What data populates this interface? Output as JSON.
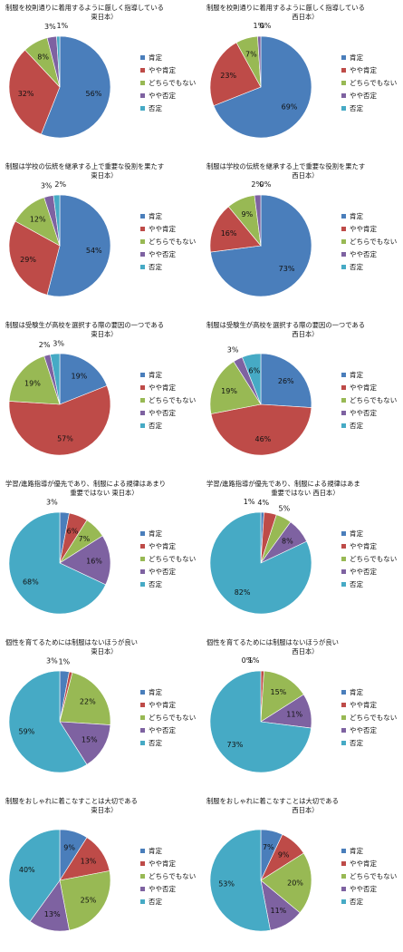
{
  "legend_labels": [
    "肯定",
    "やや肯定",
    "どちらでもない",
    "やや否定",
    "否定"
  ],
  "colors": [
    "#4a7ebb",
    "#be4b48",
    "#98b954",
    "#7e62a1",
    "#46aac5"
  ],
  "chart_data": [
    {
      "type": "pie",
      "title_lines": [
        "制服を校則通りに着用するように厳しく指導している",
        "東日本）"
      ],
      "categories": [
        "肯定",
        "やや肯定",
        "どちらでもない",
        "やや否定",
        "否定"
      ],
      "values": [
        56,
        32,
        8,
        3,
        1
      ],
      "labels": [
        "56%",
        "32%",
        "8%",
        "3%",
        "1%"
      ]
    },
    {
      "type": "pie",
      "title_lines": [
        "制服を校則通りに着用するように厳しく指導している",
        "西日本）"
      ],
      "categories": [
        "肯定",
        "やや肯定",
        "どちらでもない",
        "やや否定",
        "否定"
      ],
      "values": [
        69,
        23,
        7,
        1,
        0
      ],
      "labels": [
        "69%",
        "23%",
        "7%",
        "1%",
        "0%"
      ]
    },
    {
      "type": "pie",
      "title_lines": [
        "制服は学校の伝統を継承する上で重要な役割を果たす",
        "東日本）"
      ],
      "categories": [
        "肯定",
        "やや肯定",
        "どちらでもない",
        "やや否定",
        "否定"
      ],
      "values": [
        54,
        29,
        12,
        3,
        2
      ],
      "labels": [
        "54%",
        "29%",
        "12%",
        "3%",
        "2%"
      ]
    },
    {
      "type": "pie",
      "title_lines": [
        "制服は学校の伝統を継承する上で重要な役割を果たす",
        "西日本）"
      ],
      "categories": [
        "肯定",
        "やや肯定",
        "どちらでもない",
        "やや否定",
        "否定"
      ],
      "values": [
        73,
        16,
        9,
        2,
        0
      ],
      "labels": [
        "73%",
        "16%",
        "9%",
        "2%",
        "0%"
      ]
    },
    {
      "type": "pie",
      "title_lines": [
        "制服は受験生が高校を選択する際の要因の一つである",
        "東日本）"
      ],
      "categories": [
        "肯定",
        "やや肯定",
        "どちらでもない",
        "やや否定",
        "否定"
      ],
      "values": [
        19,
        57,
        19,
        2,
        3
      ],
      "labels": [
        "19%",
        "57%",
        "19%",
        "2%",
        "3%"
      ]
    },
    {
      "type": "pie",
      "title_lines": [
        "制服は受験生が高校を選択する際の要因の一つである",
        "西日本）"
      ],
      "categories": [
        "肯定",
        "やや肯定",
        "どちらでもない",
        "やや否定",
        "否定"
      ],
      "values": [
        26,
        46,
        19,
        3,
        6
      ],
      "labels": [
        "26%",
        "46%",
        "19%",
        "3%",
        "6%"
      ]
    },
    {
      "type": "pie",
      "title_lines": [
        "学習/進路指導が優先であり、制服による規律はあまり",
        "重要ではない 東日本）"
      ],
      "categories": [
        "肯定",
        "やや肯定",
        "どちらでもない",
        "やや否定",
        "否定"
      ],
      "values": [
        3,
        6,
        7,
        16,
        68
      ],
      "labels": [
        "3%",
        "6%",
        "7%",
        "16%",
        "68%"
      ]
    },
    {
      "type": "pie",
      "title_lines": [
        "学習/進路指導が優先であり、制服による規律はあま",
        "重要ではない 西日本）"
      ],
      "categories": [
        "肯定",
        "やや肯定",
        "どちらでもない",
        "やや否定",
        "否定"
      ],
      "values": [
        1,
        4,
        5,
        8,
        82
      ],
      "labels": [
        "1%",
        "4%",
        "5%",
        "8%",
        "82%"
      ]
    },
    {
      "type": "pie",
      "title_lines": [
        "個性を育てるためには制服はないほうが良い",
        "東日本）"
      ],
      "categories": [
        "肯定",
        "やや肯定",
        "どちらでもない",
        "やや否定",
        "否定"
      ],
      "values": [
        3,
        1,
        22,
        15,
        59
      ],
      "labels": [
        "3%",
        "1%",
        "22%",
        "15%",
        "59%"
      ]
    },
    {
      "type": "pie",
      "title_lines": [
        "個性を育てるためには制服はないほうが良い",
        "西日本）"
      ],
      "categories": [
        "肯定",
        "やや肯定",
        "どちらでもない",
        "やや否定",
        "否定"
      ],
      "values": [
        0,
        1,
        15,
        11,
        73
      ],
      "labels": [
        "0%",
        "1%",
        "15%",
        "11%",
        "73%"
      ]
    },
    {
      "type": "pie",
      "title_lines": [
        "制服をおしゃれに着こなすことは大切である",
        "東日本）"
      ],
      "categories": [
        "肯定",
        "やや肯定",
        "どちらでもない",
        "やや否定",
        "否定"
      ],
      "values": [
        9,
        13,
        25,
        13,
        40
      ],
      "labels": [
        "9%",
        "13%",
        "25%",
        "13%",
        "40%"
      ]
    },
    {
      "type": "pie",
      "title_lines": [
        "制服をおしゃれに着こなすことは大切である",
        "西日本）"
      ],
      "categories": [
        "肯定",
        "やや肯定",
        "どちらでもない",
        "やや否定",
        "否定"
      ],
      "values": [
        7,
        9,
        20,
        11,
        53
      ],
      "labels": [
        "7%",
        "9%",
        "20%",
        "11%",
        "53%"
      ]
    }
  ]
}
